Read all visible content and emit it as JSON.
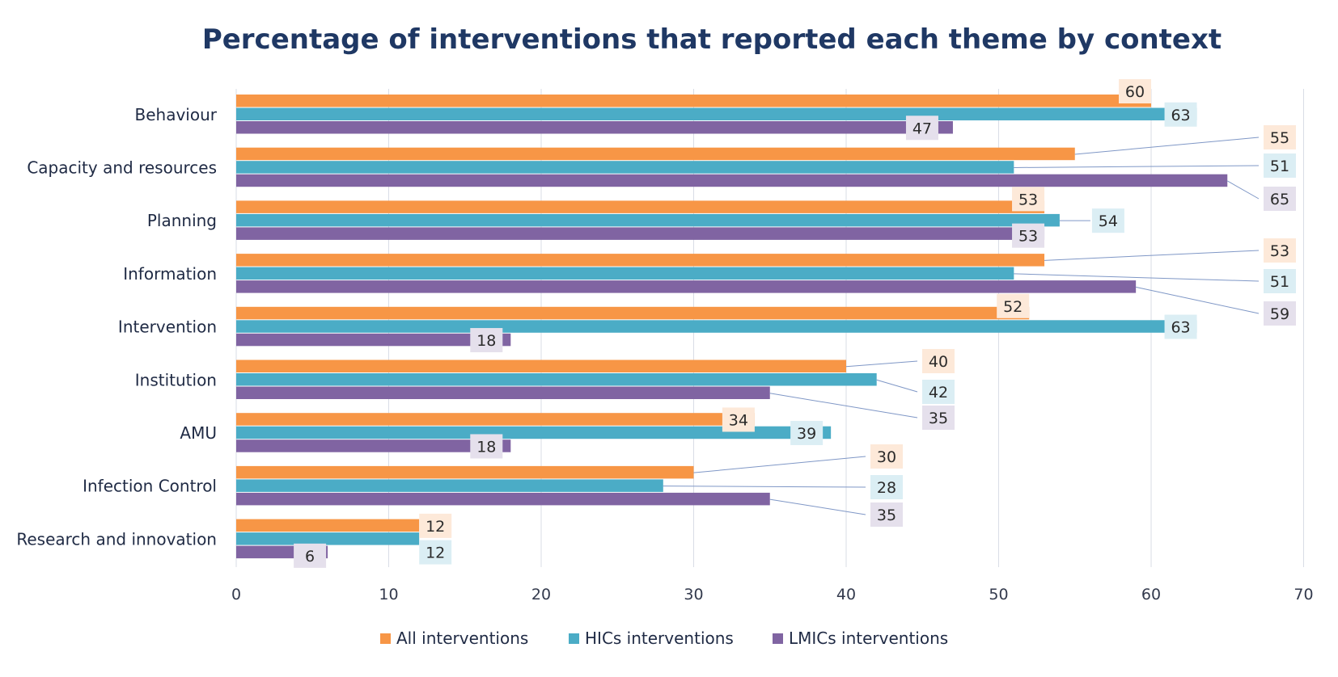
{
  "chart_data": {
    "type": "bar",
    "orientation": "horizontal",
    "title": "Percentage of interventions that reported each theme by context",
    "categories": [
      "Behaviour",
      "Capacity and resources",
      "Planning",
      "Information",
      "Intervention",
      "Institution",
      "AMU",
      "Infection Control",
      "Research and innovation"
    ],
    "series": [
      {
        "name": "All interventions",
        "color": "#f79646",
        "label_bg": "#fde9d9",
        "values": [
          60,
          55,
          53,
          53,
          52,
          40,
          34,
          30,
          12
        ]
      },
      {
        "name": "HICs interventions",
        "color": "#4bacc6",
        "label_bg": "#dbeef4",
        "values": [
          63,
          51,
          54,
          51,
          63,
          42,
          39,
          28,
          12
        ]
      },
      {
        "name": "LMICs interventions",
        "color": "#8064a2",
        "label_bg": "#e5e0ec",
        "values": [
          47,
          65,
          53,
          59,
          18,
          35,
          18,
          35,
          6
        ]
      }
    ],
    "xlim": [
      0,
      70
    ],
    "xticks": [
      0,
      10,
      20,
      30,
      40,
      50,
      60,
      70
    ],
    "xlabel": "",
    "ylabel": "",
    "grid": true,
    "legend": "bottom"
  }
}
